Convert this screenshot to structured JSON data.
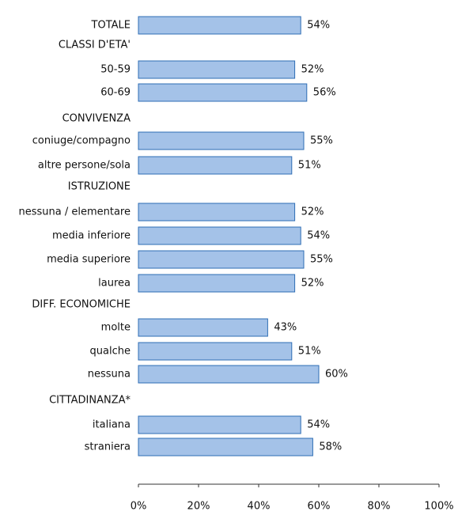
{
  "chart_data": {
    "type": "bar",
    "orientation": "horizontal",
    "color": "#a4c2e8",
    "categories": [
      "TOTALE",
      "CLASSI D'ETA'",
      "50-59",
      "60-69",
      "CONVIVENZA",
      "coniuge/compagno",
      "altre persone/sola",
      "ISTRUZIONE",
      "nessuna / elementare",
      "media  inferiore",
      "media superiore",
      "laurea",
      "DIFF. ECONOMICHE",
      "molte",
      "qualche",
      "nessuna",
      "CITTADINANZA*",
      "italiana",
      "straniera"
    ],
    "values": [
      54,
      null,
      52,
      56,
      null,
      55,
      51,
      null,
      52,
      54,
      55,
      52,
      null,
      43,
      51,
      60,
      null,
      54,
      58
    ],
    "value_labels": [
      "54%",
      null,
      "52%",
      "56%",
      null,
      "55%",
      "51%",
      null,
      "52%",
      "54%",
      "55%",
      "52%",
      null,
      "43%",
      "51%",
      "60%",
      null,
      "54%",
      "58%"
    ],
    "xlim": [
      0,
      100
    ],
    "xticks": [
      {
        "value": 0,
        "label": "0%"
      },
      {
        "value": 20,
        "label": "20%"
      },
      {
        "value": 40,
        "label": "40%"
      },
      {
        "value": 60,
        "label": "60%"
      },
      {
        "value": 80,
        "label": "80%"
      },
      {
        "value": 100,
        "label": "100%"
      }
    ]
  }
}
